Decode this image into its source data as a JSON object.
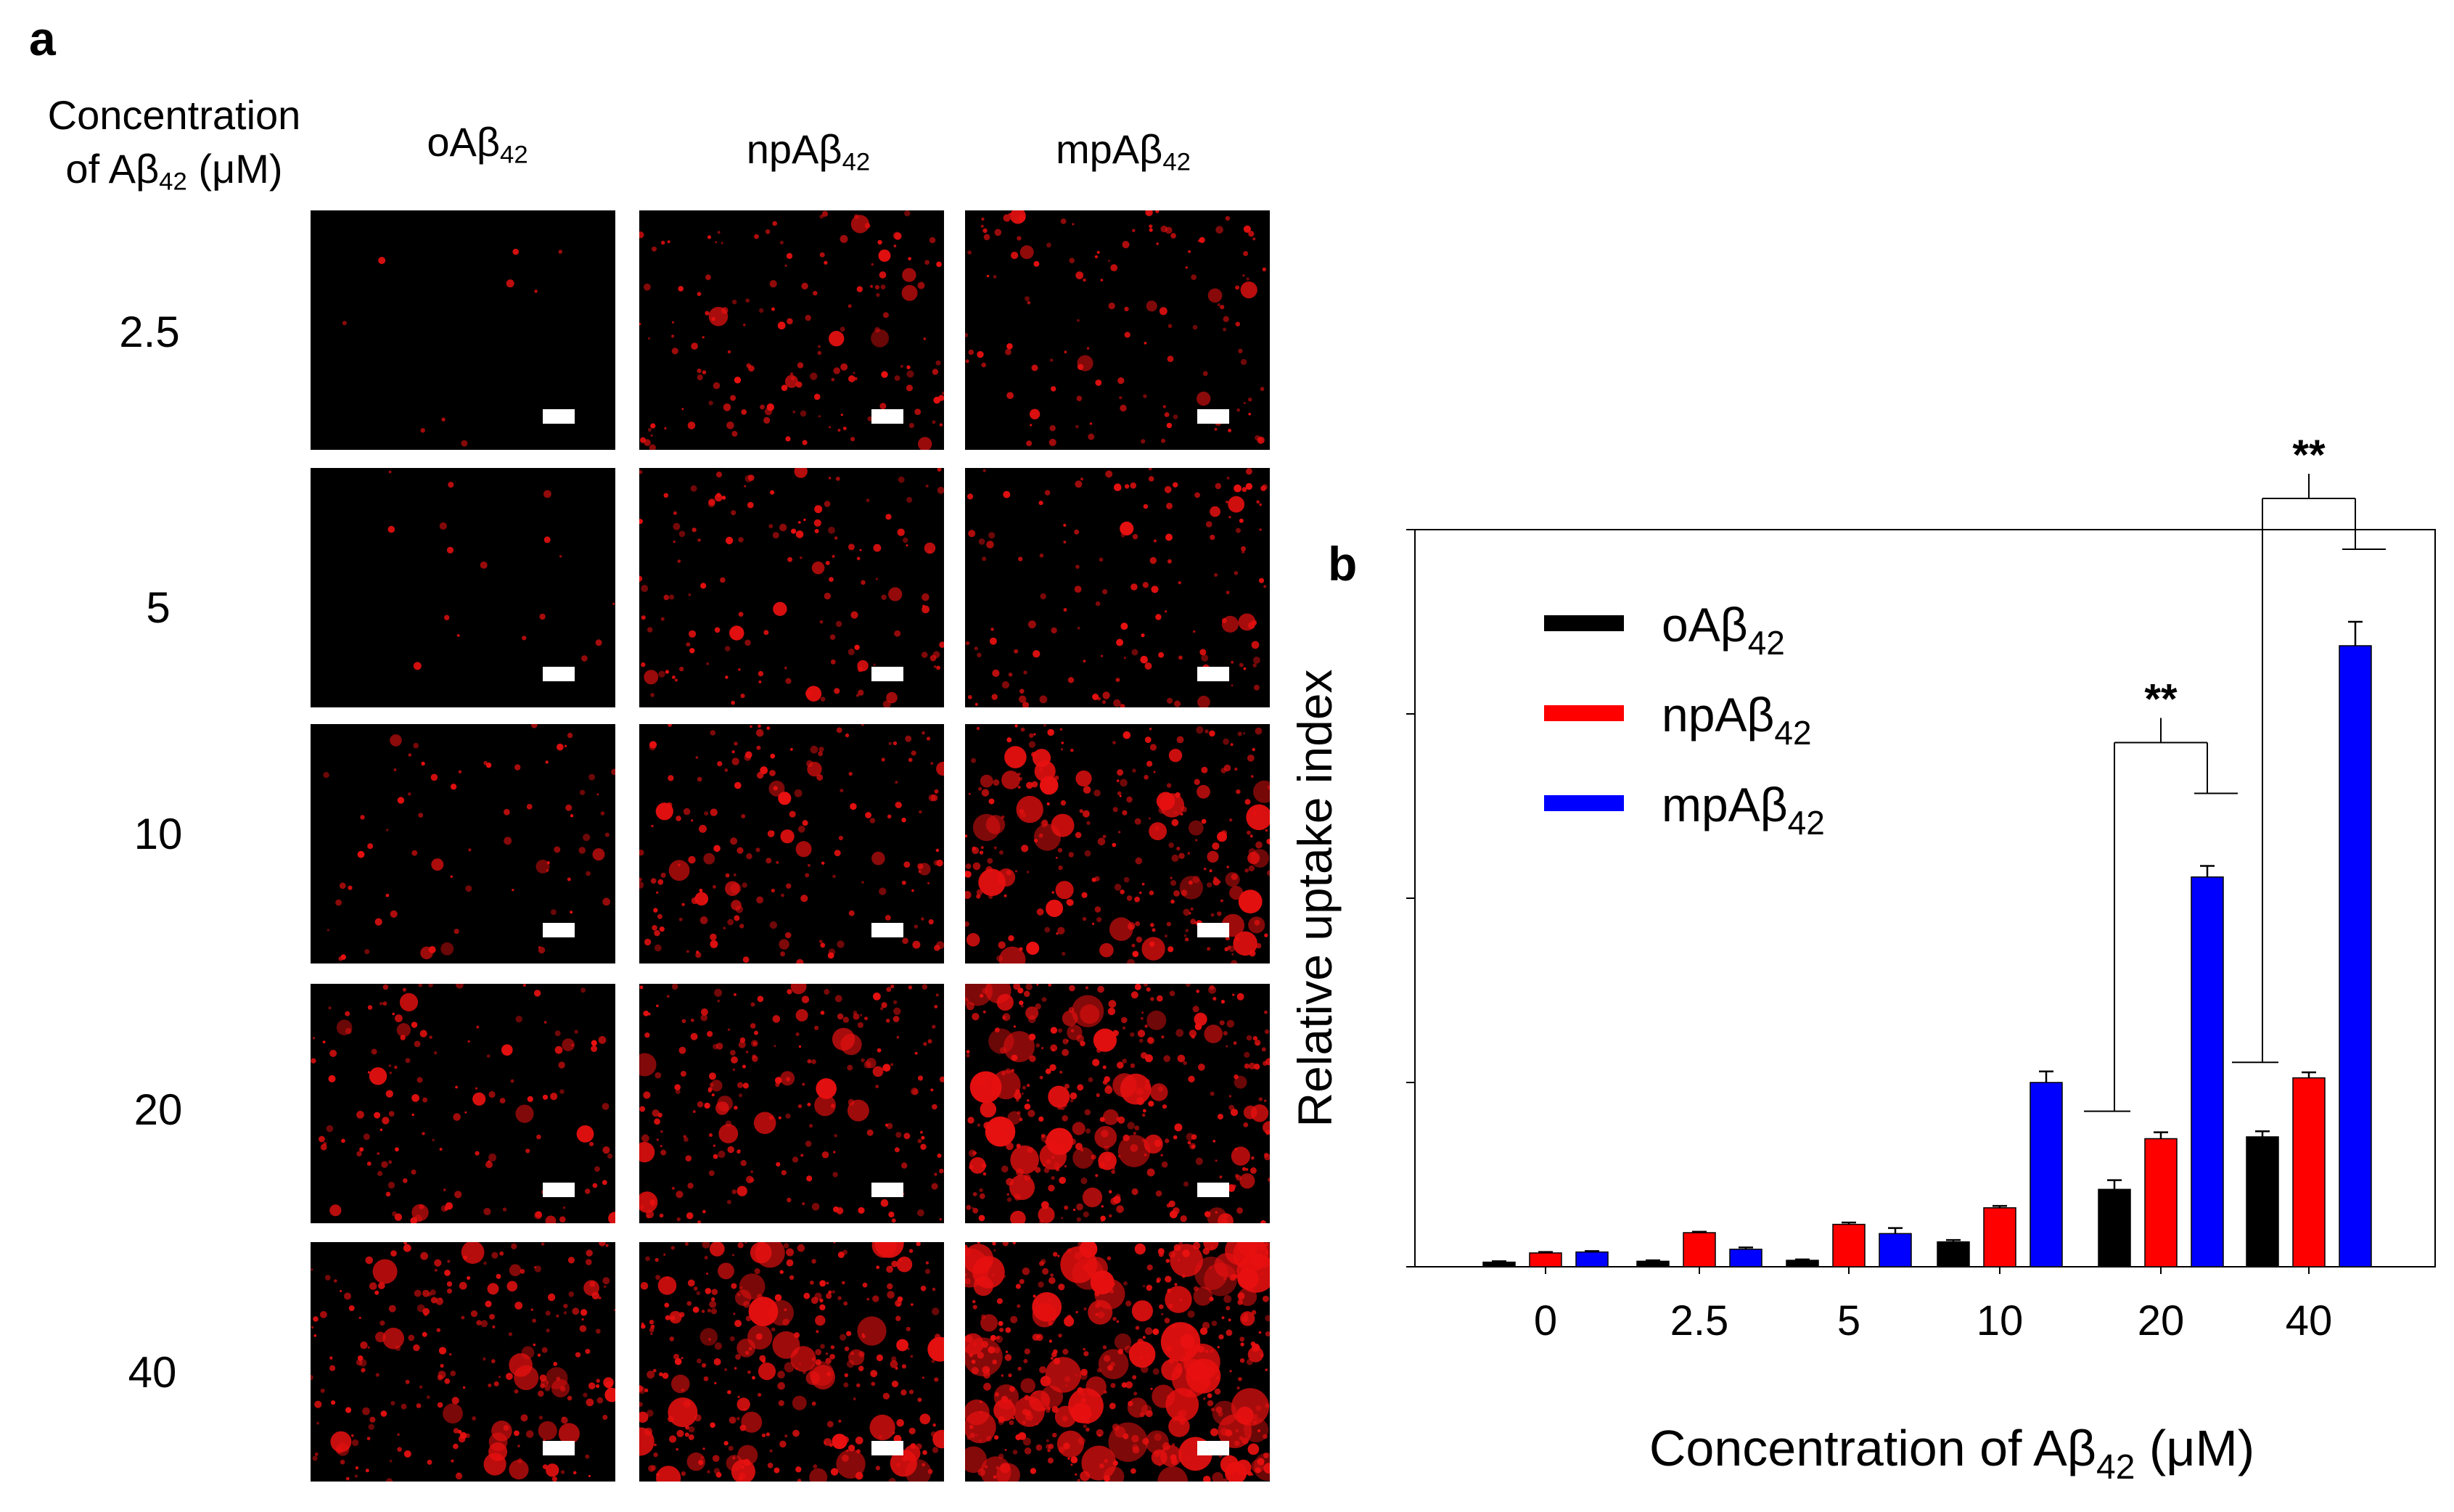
{
  "panel_a": {
    "label": "a",
    "row_header": {
      "line1": "Concentration",
      "line2_pre": "of Aβ",
      "line2_sub": "42",
      "line2_post": " (μM)"
    },
    "columns": [
      {
        "pre": "oAβ",
        "sub": "42"
      },
      {
        "pre": "npAβ",
        "sub": "42"
      },
      {
        "pre": "mpAβ",
        "sub": "42"
      }
    ],
    "rows": [
      "2.5",
      "5",
      "10",
      "20",
      "40"
    ],
    "image_color": "#000000",
    "signal_color": "#e81010",
    "relative_signal_density": [
      [
        0.02,
        0.55,
        0.45
      ],
      [
        0.05,
        0.5,
        0.5
      ],
      [
        0.25,
        0.65,
        1.0
      ],
      [
        0.5,
        0.8,
        1.3
      ],
      [
        0.85,
        1.2,
        1.7
      ]
    ]
  },
  "chart_data": {
    "type": "bar",
    "panel_label": "b",
    "categories": [
      "0",
      "2.5",
      "5",
      "10",
      "20",
      "40"
    ],
    "series": [
      {
        "name_pre": "oAβ",
        "name_sub": "42",
        "color": "#000000",
        "values": [
          0.05,
          0.06,
          0.07,
          0.27,
          0.84,
          1.41
        ],
        "errors": [
          0.01,
          0.01,
          0.01,
          0.02,
          0.1,
          0.06
        ]
      },
      {
        "name_pre": "npAβ",
        "name_sub": "42",
        "color": "#ff0000",
        "values": [
          0.15,
          0.37,
          0.46,
          0.64,
          1.39,
          2.05
        ],
        "errors": [
          0.01,
          0.01,
          0.02,
          0.02,
          0.07,
          0.06
        ]
      },
      {
        "name_pre": "mpAβ",
        "name_sub": "42",
        "color": "#0000ff",
        "values": [
          0.16,
          0.19,
          0.36,
          2.0,
          4.23,
          6.74
        ],
        "errors": [
          0.01,
          0.02,
          0.06,
          0.12,
          0.12,
          0.26
        ]
      }
    ],
    "ylim": [
      0,
      8
    ],
    "yticks": [
      0,
      2,
      4,
      6,
      8
    ],
    "ytick_labels_shown": false,
    "ylabel": "Relative uptake index",
    "xlabel": {
      "pre": "Concentration of Aβ",
      "sub": "42",
      "post": " (μM)"
    },
    "legend_position": "top-left",
    "significance": [
      {
        "category": "20",
        "label": "**"
      },
      {
        "category": "40",
        "label": "**"
      }
    ],
    "grid": false
  }
}
